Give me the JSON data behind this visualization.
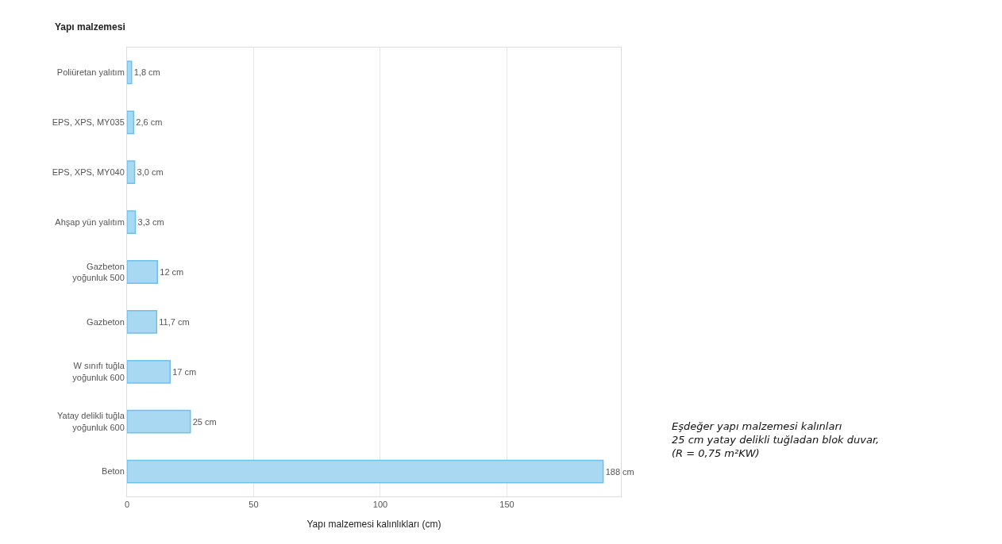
{
  "chart_data": {
    "type": "bar",
    "orientation": "horizontal",
    "ylabel": "Yapı malzemesi",
    "xlabel": "Yapı malzemesi kalınlıkları (cm)",
    "categories": [
      "Poliüretan yalıtım",
      "EPS, XPS, MY035",
      "EPS, XPS, MY040",
      "Ahşap yün yalıtım",
      "Gazbeton\nyoğunluk 500",
      "Gazbeton",
      "W sınıfı tuğla\nyoğunluk 600",
      "Yatay delikli tuğla\nyoğunluk 600",
      "Beton"
    ],
    "values": [
      1.8,
      2.6,
      3.0,
      3.3,
      12,
      11.7,
      17,
      25,
      188
    ],
    "value_labels": [
      "1,8 cm",
      "2,6 cm",
      "3,0 cm",
      "3,3 cm",
      "12 cm",
      "11,7 cm",
      "17 cm",
      "25 cm",
      "188 cm"
    ],
    "color": "#a9d8f2",
    "xlim": [
      0,
      195
    ],
    "xticks": [
      0,
      50,
      100,
      150
    ],
    "grid": "x",
    "annotations": [
      "Eşdeğer yapı malzemesi kalınları\n25 cm yatay delikli tuğladan blok duvar,\n(R = 0,75 m²KW)"
    ]
  }
}
